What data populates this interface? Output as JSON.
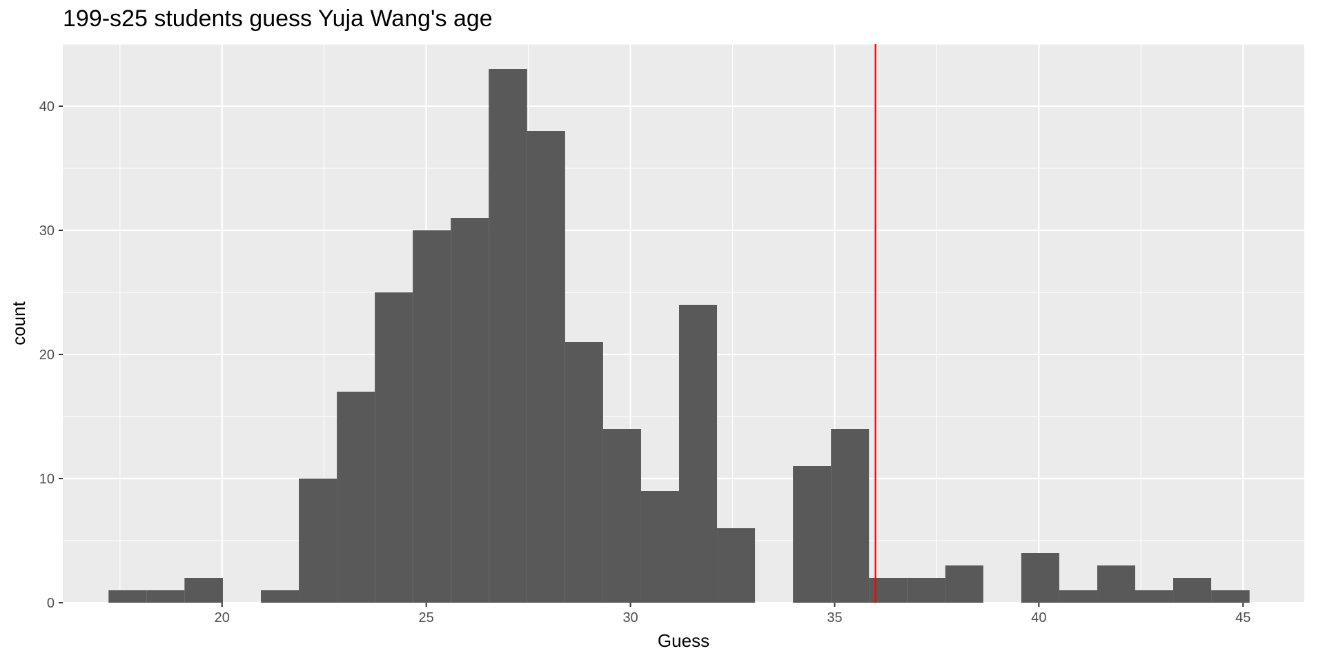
{
  "chart_data": {
    "type": "bar",
    "title": "199-s25 students guess Yuja Wang's age",
    "xlabel": "Guess",
    "ylabel": "count",
    "xlim": [
      16.1,
      46.5
    ],
    "ylim": [
      0,
      45
    ],
    "x_ticks": [
      20,
      25,
      30,
      35,
      40,
      45
    ],
    "y_ticks": [
      0,
      10,
      20,
      30,
      40
    ],
    "grid": true,
    "background": "#ebebeb",
    "bar_color": "#595959",
    "bins": [
      {
        "x0": 17.22,
        "x1": 18.15,
        "count": 1
      },
      {
        "x0": 18.15,
        "x1": 19.08,
        "count": 1
      },
      {
        "x0": 19.08,
        "x1": 20.02,
        "count": 2
      },
      {
        "x0": 20.02,
        "x1": 20.95,
        "count": 0
      },
      {
        "x0": 20.95,
        "x1": 21.88,
        "count": 1
      },
      {
        "x0": 21.88,
        "x1": 22.81,
        "count": 10
      },
      {
        "x0": 22.81,
        "x1": 23.74,
        "count": 17
      },
      {
        "x0": 23.74,
        "x1": 24.67,
        "count": 25
      },
      {
        "x0": 24.67,
        "x1": 25.6,
        "count": 30
      },
      {
        "x0": 25.6,
        "x1": 26.53,
        "count": 31
      },
      {
        "x0": 26.53,
        "x1": 27.47,
        "count": 43
      },
      {
        "x0": 27.47,
        "x1": 28.4,
        "count": 38
      },
      {
        "x0": 28.4,
        "x1": 29.33,
        "count": 21
      },
      {
        "x0": 29.33,
        "x1": 30.26,
        "count": 14
      },
      {
        "x0": 30.26,
        "x1": 31.19,
        "count": 9
      },
      {
        "x0": 31.19,
        "x1": 32.12,
        "count": 24
      },
      {
        "x0": 32.12,
        "x1": 33.05,
        "count": 6
      },
      {
        "x0": 33.05,
        "x1": 33.98,
        "count": 0
      },
      {
        "x0": 33.98,
        "x1": 34.91,
        "count": 11
      },
      {
        "x0": 34.91,
        "x1": 35.84,
        "count": 14
      },
      {
        "x0": 35.84,
        "x1": 36.78,
        "count": 2
      },
      {
        "x0": 36.78,
        "x1": 37.71,
        "count": 2
      },
      {
        "x0": 37.71,
        "x1": 38.64,
        "count": 3
      },
      {
        "x0": 38.64,
        "x1": 39.57,
        "count": 0
      },
      {
        "x0": 39.57,
        "x1": 40.5,
        "count": 4
      },
      {
        "x0": 40.5,
        "x1": 41.43,
        "count": 1
      },
      {
        "x0": 41.43,
        "x1": 42.36,
        "count": 3
      },
      {
        "x0": 42.36,
        "x1": 43.29,
        "count": 1
      },
      {
        "x0": 43.29,
        "x1": 44.22,
        "count": 2
      },
      {
        "x0": 44.22,
        "x1": 45.16,
        "count": 1
      }
    ],
    "reference_line": {
      "x": 36,
      "color": "#ff0000"
    }
  }
}
